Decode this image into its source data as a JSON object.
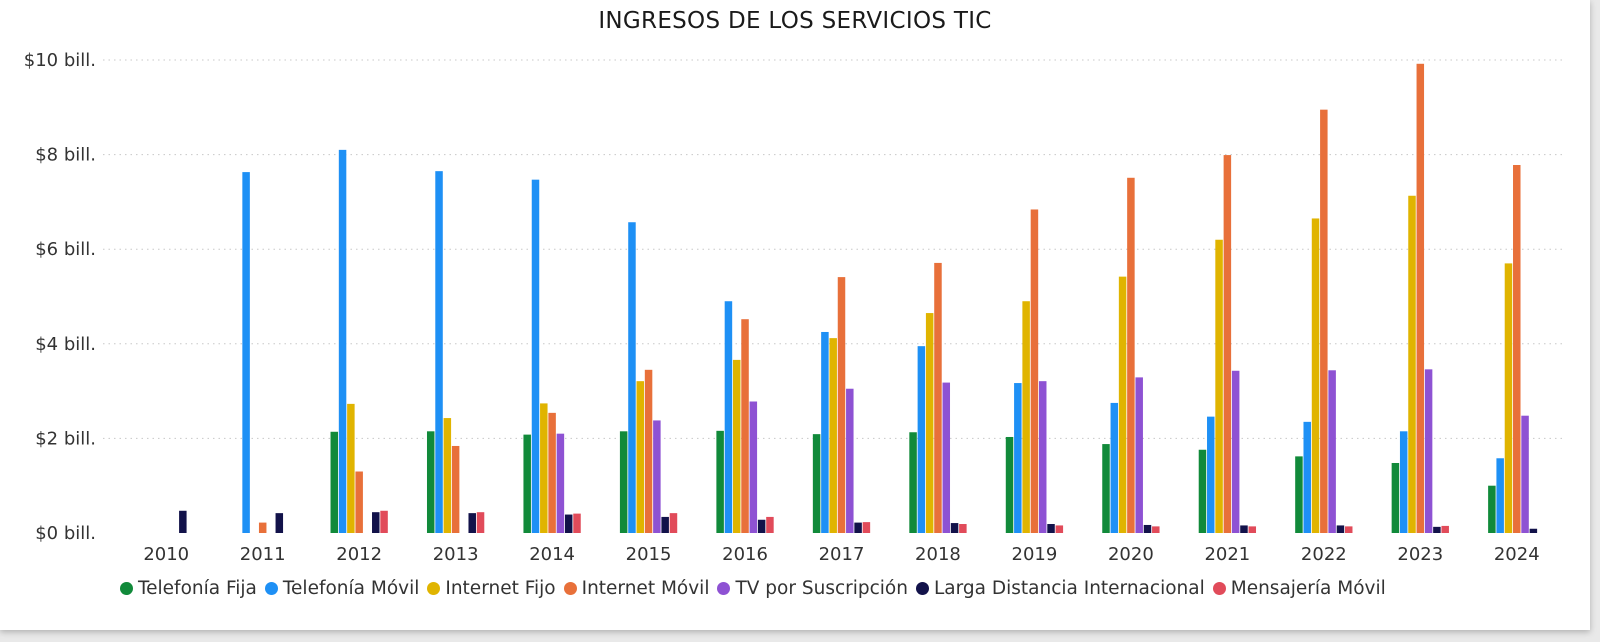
{
  "chart_data": {
    "type": "bar",
    "title": "INGRESOS DE LOS SERVICIOS TIC",
    "categories": [
      "2010",
      "2011",
      "2012",
      "2013",
      "2014",
      "2015",
      "2016",
      "2017",
      "2018",
      "2019",
      "2020",
      "2021",
      "2022",
      "2023",
      "2024"
    ],
    "ylim": [
      0,
      10
    ],
    "y_ticks": [
      {
        "value": 0,
        "label": "$0 bill."
      },
      {
        "value": 2,
        "label": "$2 bill."
      },
      {
        "value": 4,
        "label": "$4 bill."
      },
      {
        "value": 6,
        "label": "$6 bill."
      },
      {
        "value": 8,
        "label": "$8 bill."
      },
      {
        "value": 10,
        "label": "$10 bill."
      }
    ],
    "grid": true,
    "legend_position": "bottom",
    "series": [
      {
        "name": "Telefonía Fija",
        "color": "#118a3a",
        "values": [
          null,
          null,
          2.14,
          2.15,
          2.08,
          2.15,
          2.16,
          2.09,
          2.13,
          2.03,
          1.88,
          1.76,
          1.62,
          1.48,
          1.0
        ]
      },
      {
        "name": "Telefonía Móvil",
        "color": "#1e90f5",
        "values": [
          null,
          7.63,
          8.1,
          7.65,
          7.47,
          6.57,
          4.9,
          4.25,
          3.95,
          3.17,
          2.75,
          2.46,
          2.35,
          2.15,
          1.58
        ]
      },
      {
        "name": "Internet Fijo",
        "color": "#e0b400",
        "values": [
          null,
          null,
          2.73,
          2.43,
          2.74,
          3.21,
          3.66,
          4.12,
          4.65,
          4.9,
          5.42,
          6.2,
          6.65,
          7.13,
          5.7
        ]
      },
      {
        "name": "Internet Móvil",
        "color": "#e8703a",
        "values": [
          null,
          0.22,
          1.3,
          1.84,
          2.54,
          3.45,
          4.52,
          5.41,
          5.71,
          6.84,
          7.51,
          7.99,
          8.95,
          9.92,
          7.78
        ]
      },
      {
        "name": "TV por Suscripción",
        "color": "#8e52d3",
        "values": [
          null,
          null,
          null,
          null,
          2.1,
          2.38,
          2.78,
          3.05,
          3.18,
          3.21,
          3.29,
          3.43,
          3.44,
          3.46,
          2.48
        ]
      },
      {
        "name": "Larga Distancia Internacional",
        "color": "#12124a",
        "values": [
          0.47,
          0.42,
          0.44,
          0.42,
          0.39,
          0.34,
          0.28,
          0.22,
          0.21,
          0.19,
          0.17,
          0.16,
          0.16,
          0.13,
          0.09
        ]
      },
      {
        "name": "Mensajería Móvil",
        "color": "#e14b5a",
        "values": [
          null,
          null,
          0.47,
          0.44,
          0.41,
          0.42,
          0.34,
          0.23,
          0.19,
          0.16,
          0.14,
          0.14,
          0.14,
          0.15,
          null
        ]
      }
    ]
  }
}
